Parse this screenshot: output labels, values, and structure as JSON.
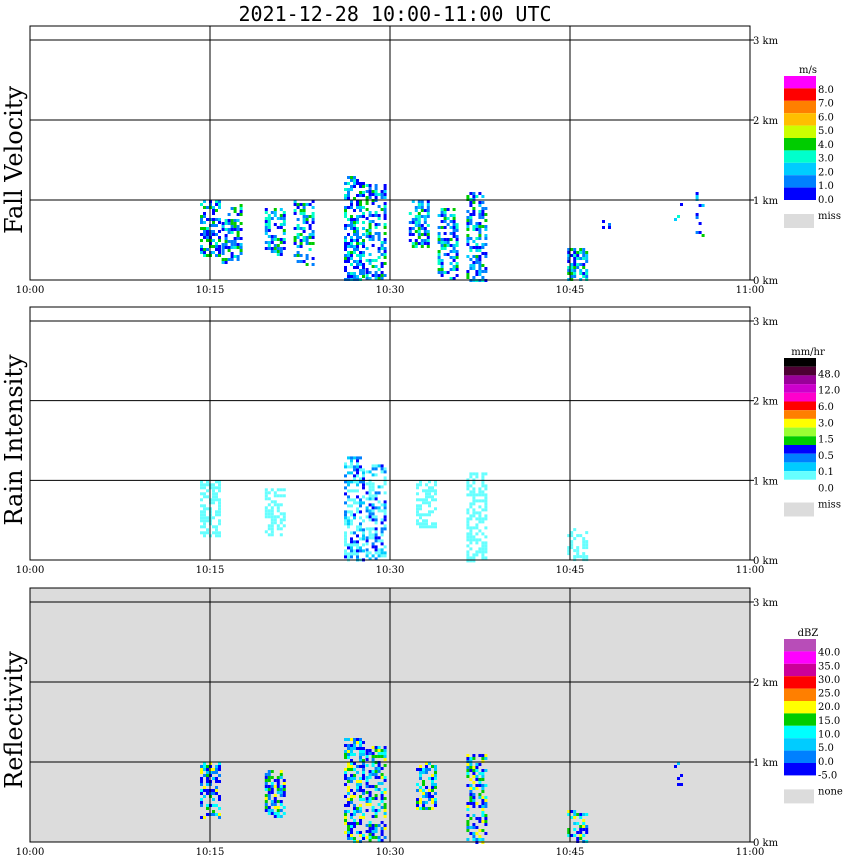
{
  "title": "2021-12-28   10:00-11:00 UTC",
  "x_ticks": [
    "10:00",
    "10:15",
    "10:30",
    "10:45",
    "11:00"
  ],
  "y_ticks": [
    "0 km",
    "1 km",
    "2 km",
    "3 km"
  ],
  "colors": {
    "axis": "#000000",
    "missing": "#dcdcdc",
    "background_reflectivity": "#dcdcdc"
  },
  "chart_data": [
    {
      "type": "heatmap",
      "ylabel": "Fall Velocity",
      "unit": "m/s",
      "x_range": [
        "10:00",
        "11:00"
      ],
      "y_range_km": [
        0,
        3.1
      ],
      "grid": true,
      "background": "white",
      "legend": {
        "placement": "right",
        "colors": [
          "#ff00ff",
          "#ff0000",
          "#ff7f00",
          "#ffbf00",
          "#ccff00",
          "#00cc00",
          "#00ffcc",
          "#00ccff",
          "#0080ff",
          "#0000ff"
        ],
        "labels": [
          "8.0",
          "7.0",
          "6.0",
          "5.0",
          "4.0",
          "3.0",
          "2.0",
          "1.0",
          "0.0"
        ],
        "miss_label": "miss"
      },
      "echo_columns": [
        {
          "t": 10.25,
          "h0": 0.3,
          "h1": 1.0,
          "c": "mixed"
        },
        {
          "t": 10.28,
          "h0": 0.2,
          "h1": 0.95,
          "c": "mixed"
        },
        {
          "t": 10.34,
          "h0": 0.3,
          "h1": 0.9,
          "c": "mixed"
        },
        {
          "t": 10.38,
          "h0": 0.2,
          "h1": 1.0,
          "c": "mixed"
        },
        {
          "t": 10.45,
          "h0": 0.0,
          "h1": 1.3,
          "c": "mixed"
        },
        {
          "t": 10.48,
          "h0": 0.0,
          "h1": 1.2,
          "c": "mixed"
        },
        {
          "t": 10.54,
          "h0": 0.4,
          "h1": 1.0,
          "c": "mixed"
        },
        {
          "t": 10.58,
          "h0": 0.0,
          "h1": 0.9,
          "c": "mixed"
        },
        {
          "t": 10.62,
          "h0": 0.0,
          "h1": 1.1,
          "c": "mixed"
        },
        {
          "t": 10.76,
          "h0": 0.0,
          "h1": 0.4,
          "c": "mixed"
        },
        {
          "t": 10.8,
          "h0": 0.6,
          "h1": 0.9,
          "c": "sparse"
        },
        {
          "t": 10.9,
          "h0": 0.7,
          "h1": 1.0,
          "c": "sparse"
        },
        {
          "t": 10.93,
          "h0": 0.4,
          "h1": 1.1,
          "c": "sparse"
        }
      ]
    },
    {
      "type": "heatmap",
      "ylabel": "Rain Intensity",
      "unit": "mm/hr",
      "x_range": [
        "10:00",
        "11:00"
      ],
      "y_range_km": [
        0,
        3.1
      ],
      "grid": true,
      "background": "white",
      "legend": {
        "placement": "right",
        "colors": [
          "#000000",
          "#4d0033",
          "#990099",
          "#cc00cc",
          "#ff00cc",
          "#ff0000",
          "#ff7f00",
          "#ffff00",
          "#99ff33",
          "#00cc00",
          "#0000ff",
          "#007fff",
          "#00ccff",
          "#66ffff",
          "#ffffff"
        ],
        "labels": [
          "48.0",
          "12.0",
          "6.0",
          "3.0",
          "1.5",
          "0.5",
          "0.1",
          "0.0"
        ],
        "miss_label": "miss"
      },
      "echo_columns": [
        {
          "t": 10.25,
          "h0": 0.3,
          "h1": 1.0,
          "c": "light"
        },
        {
          "t": 10.34,
          "h0": 0.3,
          "h1": 0.9,
          "c": "light"
        },
        {
          "t": 10.45,
          "h0": 0.0,
          "h1": 1.3,
          "c": "mixed"
        },
        {
          "t": 10.48,
          "h0": 0.0,
          "h1": 1.2,
          "c": "mixed"
        },
        {
          "t": 10.55,
          "h0": 0.4,
          "h1": 1.0,
          "c": "light"
        },
        {
          "t": 10.62,
          "h0": 0.0,
          "h1": 1.1,
          "c": "light"
        },
        {
          "t": 10.76,
          "h0": 0.0,
          "h1": 0.4,
          "c": "light"
        }
      ]
    },
    {
      "type": "heatmap",
      "ylabel": "Reflectivity",
      "unit": "dBZ",
      "x_range": [
        "10:00",
        "11:00"
      ],
      "y_range_km": [
        0,
        3.1
      ],
      "grid": true,
      "background": "gray",
      "legend": {
        "placement": "right",
        "colors": [
          "#b84db8",
          "#ff00ff",
          "#cc0099",
          "#ff0000",
          "#ff7f00",
          "#ffff00",
          "#00cc00",
          "#00ffff",
          "#00ccff",
          "#0080ff",
          "#0000ff"
        ],
        "labels": [
          "40.0",
          "35.0",
          "30.0",
          "25.0",
          "20.0",
          "15.0",
          "10.0",
          "5.0",
          "0.0",
          "-5.0"
        ],
        "miss_label": "none"
      },
      "echo_columns": [
        {
          "t": 10.25,
          "h0": 0.3,
          "h1": 1.0,
          "c": "mixed"
        },
        {
          "t": 10.34,
          "h0": 0.3,
          "h1": 0.9,
          "c": "mixed"
        },
        {
          "t": 10.45,
          "h0": 0.0,
          "h1": 1.3,
          "c": "mixed"
        },
        {
          "t": 10.48,
          "h0": 0.0,
          "h1": 1.2,
          "c": "mixed"
        },
        {
          "t": 10.55,
          "h0": 0.4,
          "h1": 1.0,
          "c": "mixed"
        },
        {
          "t": 10.62,
          "h0": 0.0,
          "h1": 1.1,
          "c": "mixed"
        },
        {
          "t": 10.76,
          "h0": 0.0,
          "h1": 0.4,
          "c": "mixed"
        },
        {
          "t": 10.9,
          "h0": 0.7,
          "h1": 1.0,
          "c": "sparse"
        }
      ]
    }
  ]
}
